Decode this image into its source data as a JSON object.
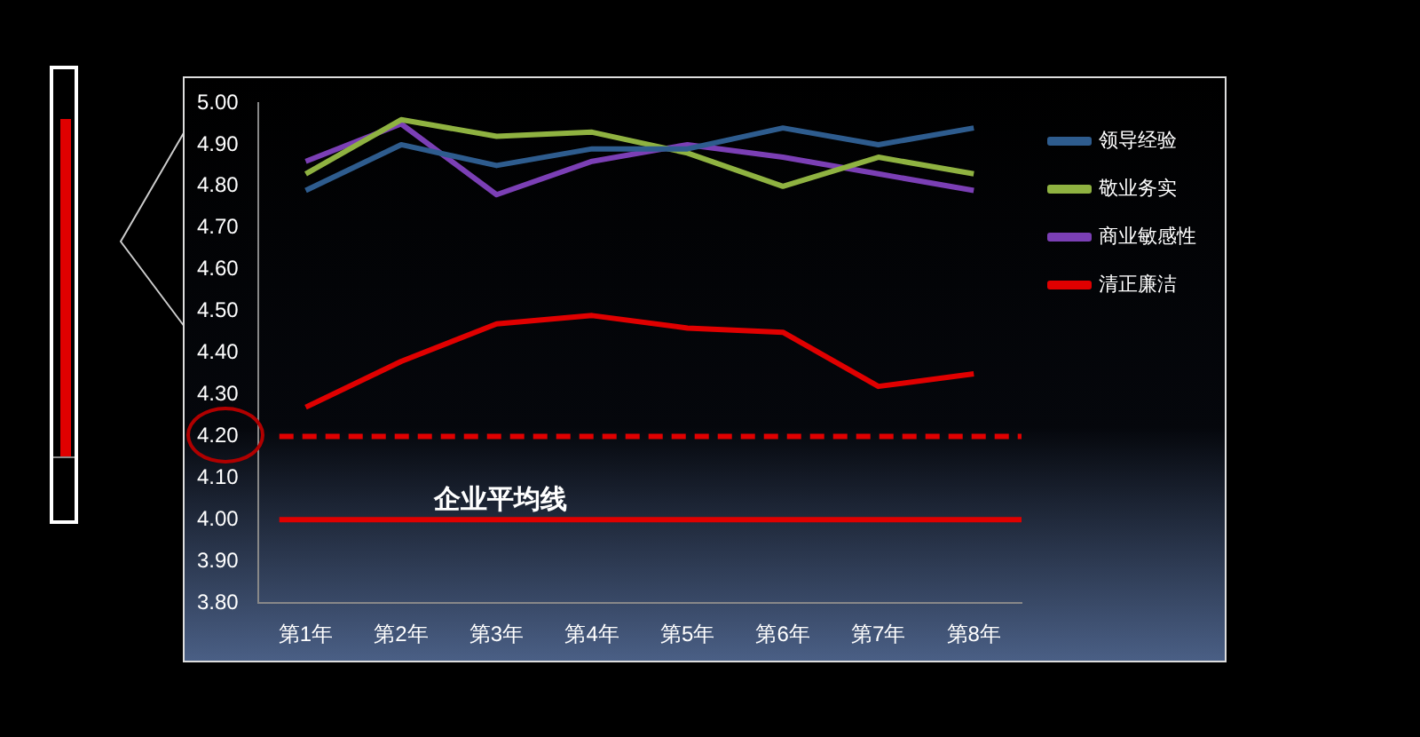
{
  "chart_data": {
    "type": "line",
    "categories": [
      "第1年",
      "第2年",
      "第3年",
      "第4年",
      "第5年",
      "第6年",
      "第7年",
      "第8年"
    ],
    "series": [
      {
        "name": "领导经验",
        "color": "#2e5c8e",
        "values": [
          4.79,
          4.9,
          4.85,
          4.89,
          4.89,
          4.94,
          4.9,
          4.94
        ]
      },
      {
        "name": "敬业务实",
        "color": "#8fb241",
        "values": [
          4.83,
          4.96,
          4.92,
          4.93,
          4.88,
          4.8,
          4.87,
          4.83
        ]
      },
      {
        "name": "商业敏感性",
        "color": "#7b3fb5",
        "values": [
          4.86,
          4.95,
          4.78,
          4.86,
          4.9,
          4.87,
          4.83,
          4.79
        ]
      },
      {
        "name": "清正廉洁",
        "color": "#e00000",
        "values": [
          4.27,
          4.38,
          4.47,
          4.49,
          4.46,
          4.45,
          4.32,
          4.35
        ]
      }
    ],
    "ylim": [
      3.8,
      5.0
    ],
    "yticks": [
      {
        "value": 3.8,
        "label": "3.80"
      },
      {
        "value": 3.9,
        "label": "3.90"
      },
      {
        "value": 4.0,
        "label": "4.00"
      },
      {
        "value": 4.1,
        "label": "4.10"
      },
      {
        "value": 4.2,
        "label": "4.20"
      },
      {
        "value": 4.3,
        "label": "4.30"
      },
      {
        "value": 4.4,
        "label": "4.40"
      },
      {
        "value": 4.5,
        "label": "4.50"
      },
      {
        "value": 4.6,
        "label": "4.60"
      },
      {
        "value": 4.7,
        "label": "4.70"
      },
      {
        "value": 4.8,
        "label": "4.80"
      },
      {
        "value": 4.9,
        "label": "4.90"
      },
      {
        "value": 5.0,
        "label": "5.00"
      }
    ],
    "ref_lines": [
      {
        "axis": "y",
        "value": 4.2,
        "color": "#e00000",
        "line_style": "dashed"
      },
      {
        "axis": "y",
        "value": 4.0,
        "label": "企业平均线",
        "color": "#e00000",
        "line_style": "solid"
      }
    ],
    "grid": false,
    "legend": "right",
    "marker": "none",
    "line_style": "solid"
  }
}
